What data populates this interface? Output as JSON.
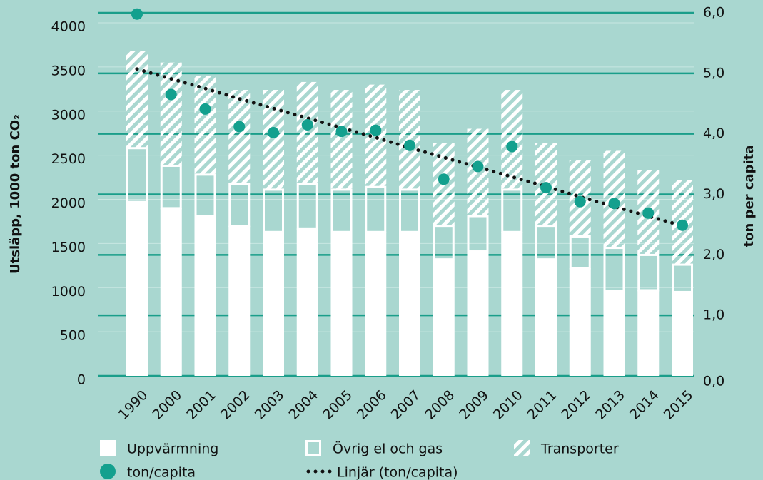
{
  "chart_data": {
    "type": "bar",
    "stacked": true,
    "categories": [
      "1990",
      "2000",
      "2001",
      "2002",
      "2003",
      "2004",
      "2005",
      "2006",
      "2007",
      "2008",
      "2009",
      "2010",
      "2011",
      "2012",
      "2013",
      "2014",
      "2015"
    ],
    "ylabel": "Utsläpp, 1000 ton CO₂",
    "y2label": "ton per capita",
    "ylim": [
      0,
      4000
    ],
    "yticks": [
      0,
      500,
      1000,
      1500,
      2000,
      2500,
      3000,
      3500,
      4000
    ],
    "y2lim": [
      0,
      6
    ],
    "y2ticks": [
      {
        "value": 0,
        "label": "0,0"
      },
      {
        "value": 1,
        "label": "1,0"
      },
      {
        "value": 2,
        "label": "2,0"
      },
      {
        "value": 3,
        "label": "3,0"
      },
      {
        "value": 4,
        "label": "4,0"
      },
      {
        "value": 5,
        "label": "5,0"
      },
      {
        "value": 6,
        "label": "6,0"
      }
    ],
    "grid": true,
    "legend": "bottom",
    "series": [
      {
        "name": "Uppvärmning",
        "type": "bar",
        "style": "solid",
        "color": "#ffffff",
        "values": [
          1970,
          1900,
          1810,
          1700,
          1630,
          1670,
          1630,
          1630,
          1630,
          1320,
          1410,
          1630,
          1320,
          1220,
          960,
          970,
          950
        ]
      },
      {
        "name": "Övrig el och gas",
        "type": "bar",
        "style": "outline",
        "color": "#ffffff",
        "values": [
          610,
          480,
          470,
          470,
          480,
          500,
          480,
          510,
          480,
          380,
          400,
          480,
          380,
          360,
          490,
          400,
          310
        ]
      },
      {
        "name": "Transporter",
        "type": "bar",
        "style": "hatched",
        "color": "#ffffff",
        "values": [
          1100,
          1170,
          1120,
          1070,
          1130,
          1160,
          1130,
          1160,
          1130,
          940,
          990,
          1130,
          940,
          860,
          1100,
          960,
          960
        ]
      },
      {
        "name": "ton/capita",
        "type": "scatter",
        "axis": "y2",
        "color": "#13a08e",
        "values": [
          5.98,
          4.65,
          4.41,
          4.12,
          4.02,
          4.15,
          4.04,
          4.06,
          3.81,
          3.25,
          3.46,
          3.79,
          3.11,
          2.88,
          2.85,
          2.69,
          2.49
        ]
      },
      {
        "name": "Linjär (ton/capita)",
        "type": "line",
        "axis": "y2",
        "style": "dotted",
        "color": "#111111",
        "values": [
          5.07,
          4.91,
          4.75,
          4.58,
          4.42,
          4.26,
          4.1,
          3.94,
          3.77,
          3.61,
          3.45,
          3.29,
          3.13,
          2.96,
          2.8,
          2.64,
          2.48
        ]
      }
    ]
  }
}
